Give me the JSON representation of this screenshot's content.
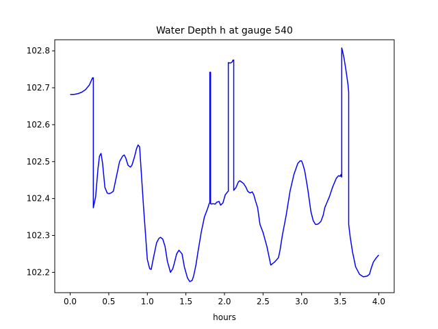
{
  "chart_data": {
    "type": "line",
    "title": "Water Depth h at gauge 540",
    "xlabel": "hours",
    "ylabel": "",
    "xlim": [
      -0.2,
      4.2
    ],
    "ylim": [
      102.145,
      102.83
    ],
    "xticks": [
      0.0,
      0.5,
      1.0,
      1.5,
      2.0,
      2.5,
      3.0,
      3.5,
      4.0
    ],
    "xtick_labels": [
      "0.0",
      "0.5",
      "1.0",
      "1.5",
      "2.0",
      "2.5",
      "3.0",
      "3.5",
      "4.0"
    ],
    "yticks": [
      102.2,
      102.3,
      102.4,
      102.5,
      102.6,
      102.7,
      102.8
    ],
    "ytick_labels": [
      "102.2",
      "102.3",
      "102.4",
      "102.5",
      "102.6",
      "102.7",
      "102.8"
    ],
    "grid": false,
    "series": [
      {
        "color": "#0000ff",
        "x": [
          0.0,
          0.05,
          0.1,
          0.15,
          0.2,
          0.25,
          0.29,
          0.3,
          0.3,
          0.33,
          0.36,
          0.38,
          0.4,
          0.42,
          0.45,
          0.48,
          0.5,
          0.53,
          0.56,
          0.6,
          0.64,
          0.68,
          0.7,
          0.72,
          0.75,
          0.78,
          0.8,
          0.83,
          0.86,
          0.88,
          0.9,
          0.95,
          1.0,
          1.03,
          1.05,
          1.08,
          1.12,
          1.15,
          1.17,
          1.2,
          1.23,
          1.26,
          1.3,
          1.33,
          1.35,
          1.38,
          1.41,
          1.45,
          1.48,
          1.52,
          1.55,
          1.58,
          1.6,
          1.63,
          1.66,
          1.7,
          1.74,
          1.78,
          1.8,
          1.81,
          1.81,
          1.82,
          1.82,
          1.83,
          1.85,
          1.88,
          1.9,
          1.93,
          1.95,
          1.98,
          2.01,
          2.04,
          2.05,
          2.05,
          2.08,
          2.1,
          2.11,
          2.12,
          2.12,
          2.15,
          2.18,
          2.2,
          2.22,
          2.25,
          2.28,
          2.3,
          2.33,
          2.36,
          2.38,
          2.4,
          2.43,
          2.46,
          2.5,
          2.55,
          2.6,
          2.65,
          2.68,
          2.7,
          2.72,
          2.75,
          2.8,
          2.85,
          2.9,
          2.95,
          2.98,
          3.0,
          3.02,
          3.04,
          3.08,
          3.12,
          3.15,
          3.18,
          3.2,
          3.22,
          3.25,
          3.28,
          3.3,
          3.33,
          3.36,
          3.4,
          3.45,
          3.48,
          3.5,
          3.51,
          3.52,
          3.52,
          3.53,
          3.55,
          3.58,
          3.6,
          3.61,
          3.61,
          3.63,
          3.66,
          3.7,
          3.75,
          3.8,
          3.85,
          3.88,
          3.9,
          3.93,
          3.97,
          4.0
        ],
        "y": [
          102.682,
          102.682,
          102.684,
          102.688,
          102.695,
          102.708,
          102.727,
          102.727,
          102.375,
          102.405,
          102.48,
          102.515,
          102.522,
          102.495,
          102.43,
          102.415,
          102.413,
          102.415,
          102.42,
          102.46,
          102.5,
          102.515,
          102.518,
          102.51,
          102.49,
          102.485,
          102.49,
          102.51,
          102.535,
          102.545,
          102.54,
          102.38,
          102.235,
          102.21,
          102.208,
          102.24,
          102.28,
          102.292,
          102.295,
          102.29,
          102.27,
          102.23,
          102.2,
          102.21,
          102.225,
          102.25,
          102.26,
          102.25,
          102.215,
          102.185,
          102.175,
          102.178,
          102.19,
          102.22,
          102.26,
          102.31,
          102.35,
          102.372,
          102.385,
          102.39,
          102.742,
          102.742,
          102.386,
          102.385,
          102.386,
          102.385,
          102.39,
          102.392,
          102.382,
          102.388,
          102.41,
          102.418,
          102.42,
          102.768,
          102.767,
          102.77,
          102.775,
          102.775,
          102.422,
          102.43,
          102.445,
          102.448,
          102.445,
          102.44,
          102.43,
          102.42,
          102.415,
          102.418,
          102.41,
          102.395,
          102.375,
          102.33,
          102.308,
          102.27,
          102.22,
          102.228,
          102.235,
          102.24,
          102.26,
          102.3,
          102.355,
          102.42,
          102.465,
          102.495,
          102.502,
          102.502,
          102.49,
          102.475,
          102.425,
          102.365,
          102.34,
          102.33,
          102.33,
          102.332,
          102.338,
          102.355,
          102.375,
          102.39,
          102.405,
          102.43,
          102.455,
          102.462,
          102.46,
          102.465,
          102.458,
          102.808,
          102.8,
          102.78,
          102.74,
          102.71,
          102.688,
          102.33,
          102.295,
          102.255,
          102.215,
          102.195,
          102.188,
          102.19,
          102.195,
          102.21,
          102.228,
          102.24,
          102.247
        ]
      }
    ]
  }
}
